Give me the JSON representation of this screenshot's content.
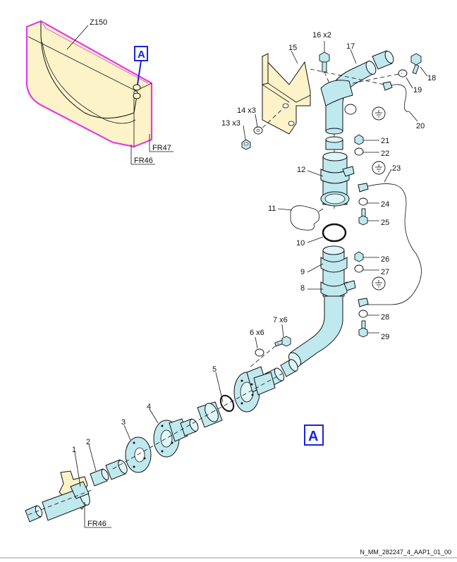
{
  "labels": {
    "z150": "Z150",
    "fr47_top": "FR47",
    "fr46_top": "FR46",
    "fr46_bottom": "FR46",
    "callout_top": "A",
    "callout_detail": "A",
    "p1": "1",
    "p2": "2",
    "p3": "3",
    "p4": "4",
    "p5": "5",
    "p6": "6 x6",
    "p7": "7 x6",
    "p8": "8",
    "p9": "9",
    "p10": "10",
    "p11": "11",
    "p12": "12",
    "p13": "13 x3",
    "p14": "14 x3",
    "p15": "15",
    "p16": "16 x2",
    "p17": "17",
    "p18": "18",
    "p19": "19",
    "p20": "20",
    "p21": "21",
    "p22": "22",
    "p23": "23",
    "p24": "24",
    "p25": "25",
    "p26": "26",
    "p27": "27",
    "p28": "28",
    "p29": "29"
  },
  "footer_ref": "N_MM_282247_4_AAP1_01_00",
  "colors": {
    "pipe": "#bfe9ee",
    "bracket": "#fdf3c8",
    "highlight": "#e53be0",
    "callout": "#1a24d9"
  }
}
